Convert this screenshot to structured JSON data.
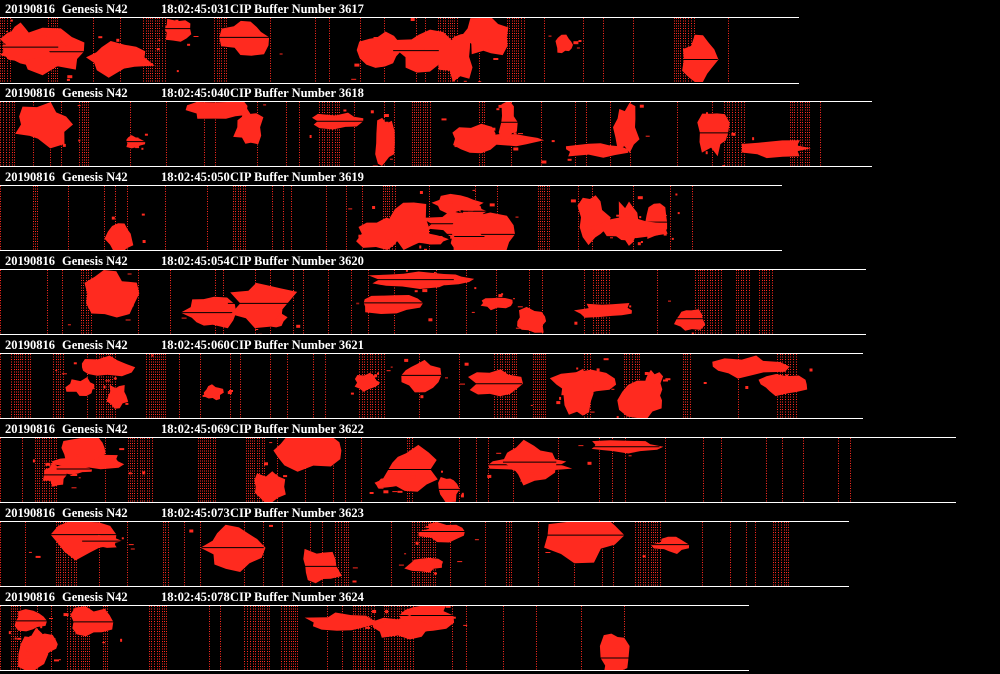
{
  "colors": {
    "background": "#000000",
    "header_text": "#ffffff",
    "particle": "#ff2a1f",
    "divider": "#ffffff"
  },
  "strips": [
    {
      "date": "20190816",
      "probe": "Genesis N42",
      "time": "18:02:45:031",
      "buffer_text": "CIP Buffer Number 3617"
    },
    {
      "date": "20190816",
      "probe": "Genesis N42",
      "time": "18:02:45:040",
      "buffer_text": "CIP Buffer Number 3618"
    },
    {
      "date": "20190816",
      "probe": "Genesis N42",
      "time": "18:02:45:050",
      "buffer_text": "CIP Buffer Number 3619"
    },
    {
      "date": "20190816",
      "probe": "Genesis N42",
      "time": "18:02:45:054",
      "buffer_text": "CIP Buffer Number 3620"
    },
    {
      "date": "20190816",
      "probe": "Genesis N42",
      "time": "18:02:45:060",
      "buffer_text": "CIP Buffer Number 3621"
    },
    {
      "date": "20190816",
      "probe": "Genesis N42",
      "time": "18:02:45:069",
      "buffer_text": "CIP Buffer Number 3622"
    },
    {
      "date": "20190816",
      "probe": "Genesis N42",
      "time": "18:02:45:073",
      "buffer_text": "CIP Buffer Number 3623"
    },
    {
      "date": "20190816",
      "probe": "Genesis N42",
      "time": "18:02:45:078",
      "buffer_text": "CIP Buffer Number 3624"
    }
  ]
}
